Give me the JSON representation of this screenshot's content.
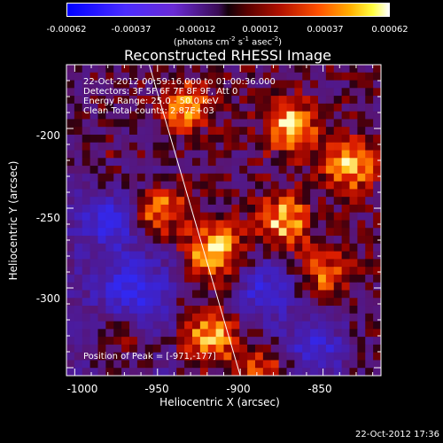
{
  "colorbar": {
    "ticks": [
      "-0.00062",
      "-0.00037",
      "-0.00012",
      "0.00012",
      "0.00037",
      "0.00062"
    ],
    "unit_text": "(photons cm",
    "unit_exp1": "-2",
    "unit_mid": " s",
    "unit_exp2": "-1",
    "unit_mid2": " asec",
    "unit_exp3": "-2",
    "unit_end": ")"
  },
  "chart_data": {
    "type": "heatmap",
    "title": "Reconstructed RHESSI Image",
    "xlabel": "Heliocentric X (arcsec)",
    "ylabel": "Heliocentric Y (arcsec)",
    "xlim": [
      -1005,
      -815
    ],
    "ylim": [
      -355,
      -160
    ],
    "xticks": [
      "-1000",
      "-950",
      "-900",
      "-850"
    ],
    "yticks": [
      "-200",
      "-250",
      "-300"
    ],
    "xtick_values": [
      -1000,
      -950,
      -900,
      -850
    ],
    "ytick_values": [
      -200,
      -250,
      -300
    ],
    "annotations": [
      "22-Oct-2012 00:59:16.000 to 01:00:36.000",
      "Detectors: 3F 5F 6F 7F 8F 9F, Att 0",
      "Energy Range: 25.0 - 50.0 keV",
      "Clean     Total counts: 2.87E+03",
      "Position of Peak = [-971,-177]"
    ],
    "colorbar_range": [
      -0.00062,
      0.00062
    ],
    "peak_position": [
      -971,
      -177
    ],
    "limb_line": [
      [
        -955,
        -160
      ],
      [
        -900,
        -355
      ]
    ]
  },
  "timestamp": "22-Oct-2012 17:36"
}
